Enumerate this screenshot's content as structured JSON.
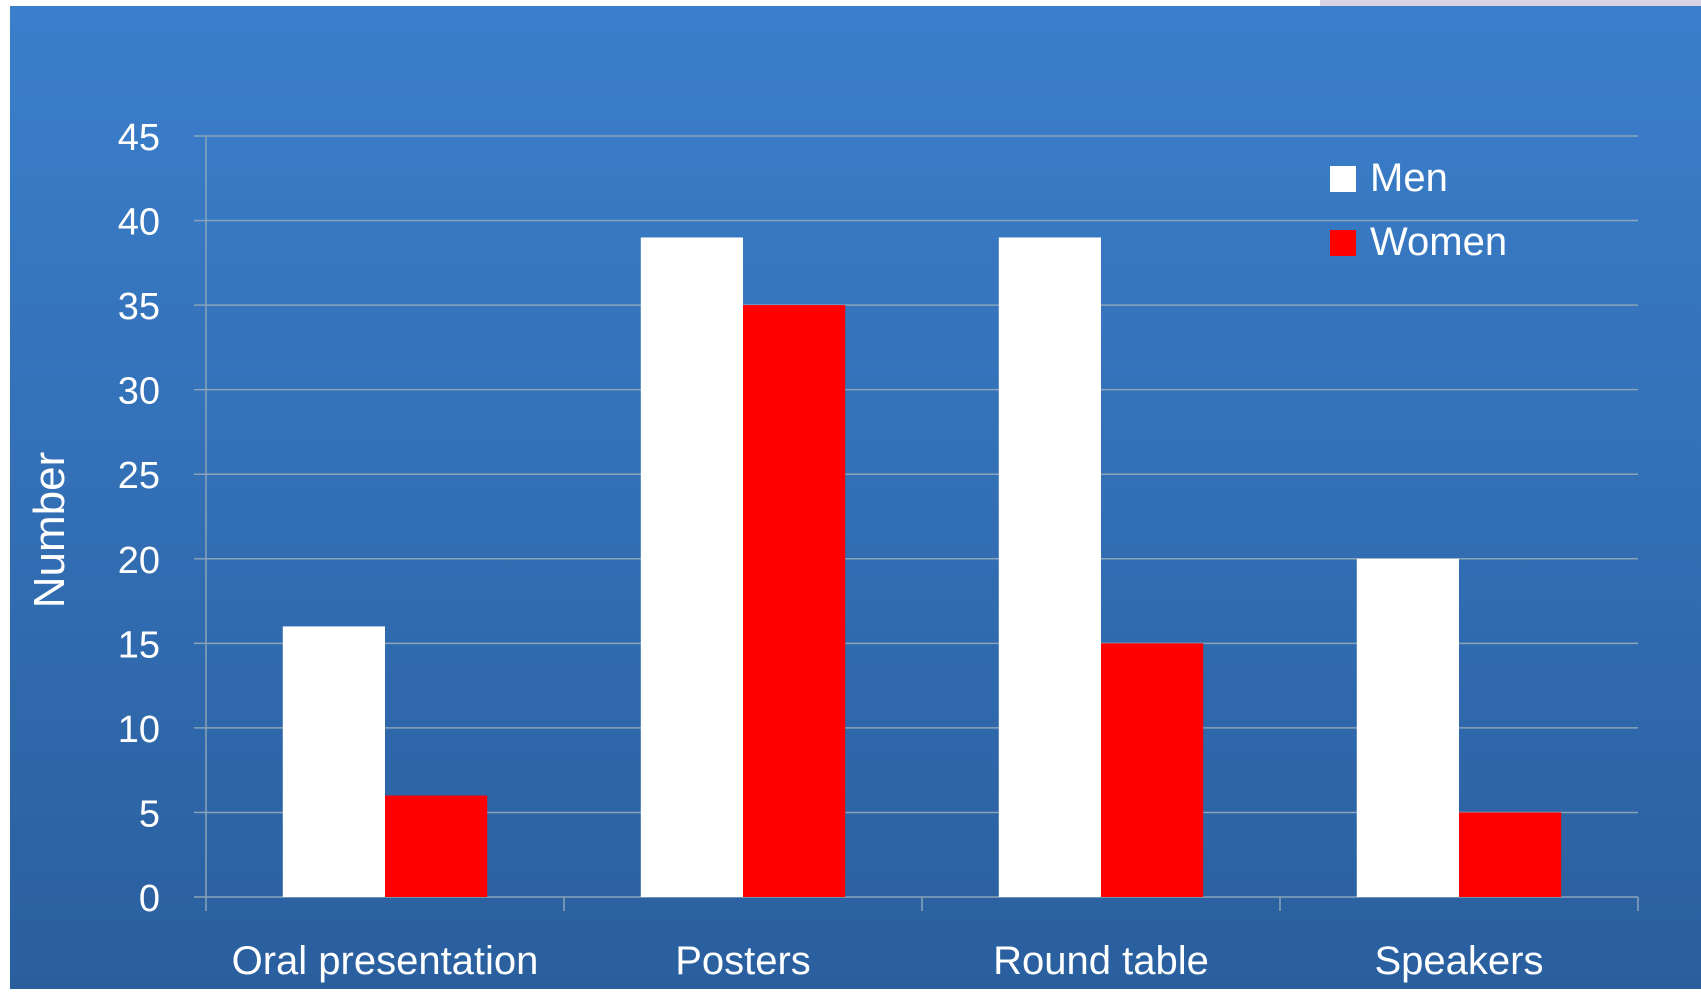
{
  "chart_data": {
    "type": "bar",
    "title": "",
    "xlabel": "",
    "ylabel": "Number",
    "categories": [
      "Oral presentation",
      "Posters",
      "Round table",
      "Speakers"
    ],
    "series": [
      {
        "name": "Men",
        "values": [
          16,
          39,
          39,
          20
        ],
        "color": "#ffffff"
      },
      {
        "name": "Women",
        "values": [
          6,
          35,
          15,
          5
        ],
        "color": "#ff0000"
      }
    ],
    "ylim": [
      0,
      45
    ],
    "yticks": [
      0,
      5,
      10,
      15,
      20,
      25,
      30,
      35,
      40,
      45
    ],
    "grid": true,
    "legend_position": "top-right"
  },
  "colors": {
    "background_top": "#3b7fcc",
    "background_bottom": "#2a5f9e",
    "gridline": "#8aa4b8",
    "text": "#ffffff"
  }
}
